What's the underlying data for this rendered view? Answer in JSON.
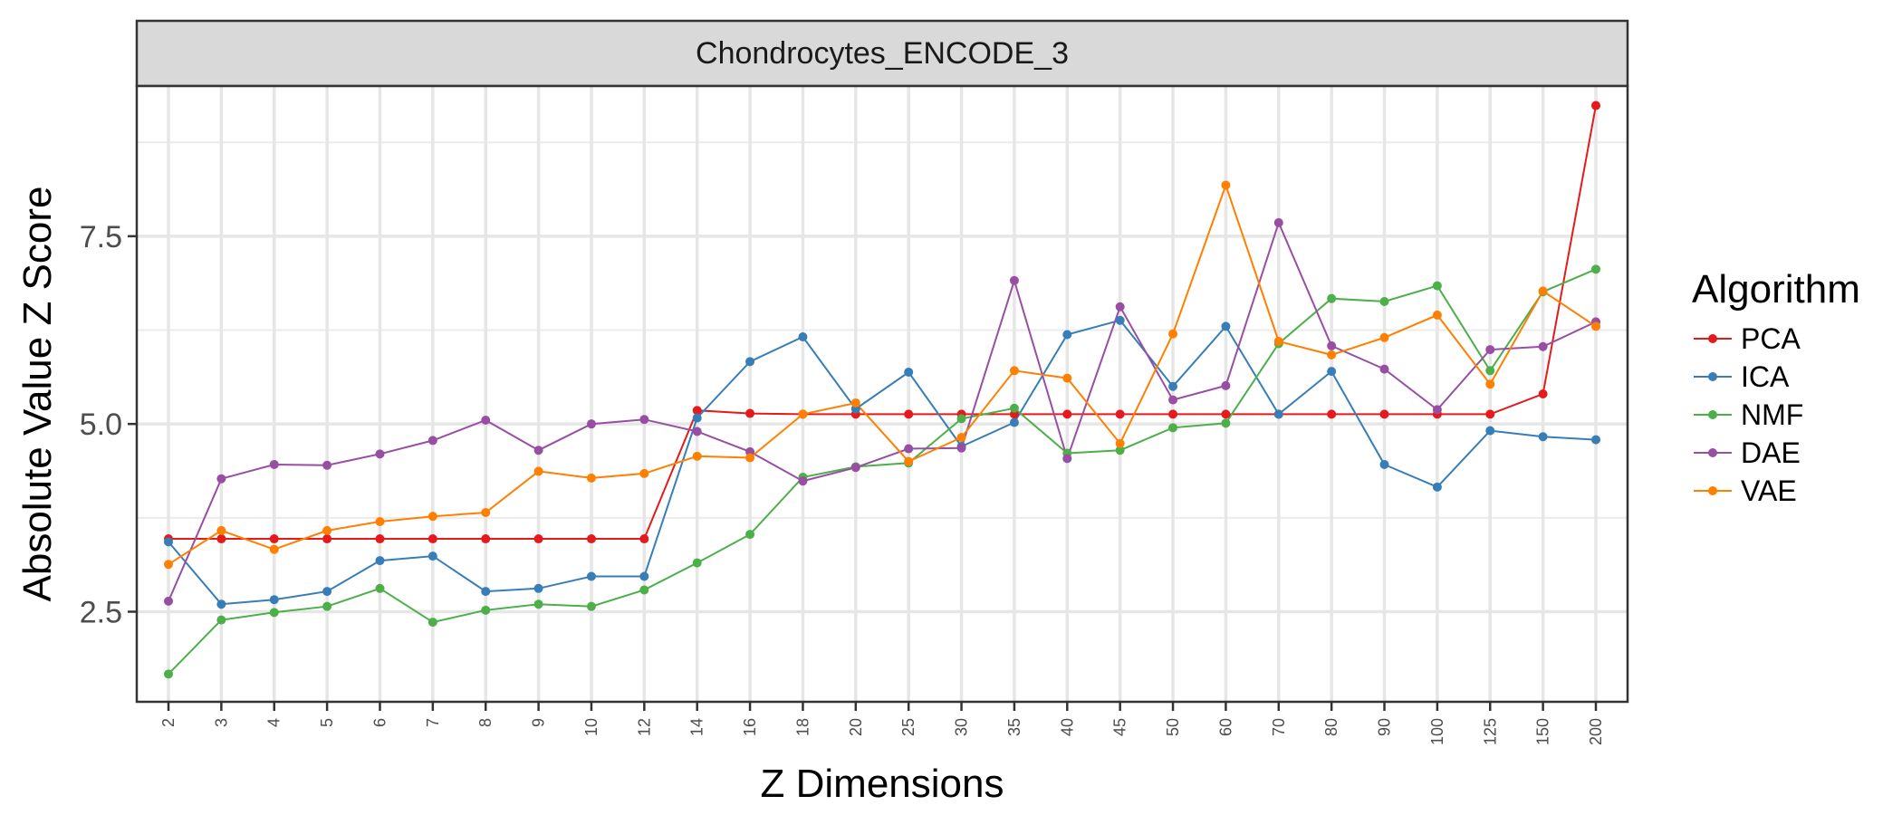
{
  "chart_data": {
    "type": "line",
    "title": "Chondrocytes_ENCODE_3",
    "xlabel": "Z Dimensions",
    "ylabel": "Absolute Value Z Score",
    "ylim": [
      1.3,
      9.5
    ],
    "yticks": [
      "2.5",
      "5.0",
      "7.5"
    ],
    "ytick_values": [
      2.5,
      5.0,
      7.5
    ],
    "grid": true,
    "legend_title": "Algorithm",
    "legend_position": "right",
    "categories": [
      "2",
      "3",
      "4",
      "5",
      "6",
      "7",
      "8",
      "9",
      "10",
      "12",
      "14",
      "16",
      "18",
      "20",
      "25",
      "30",
      "35",
      "40",
      "45",
      "50",
      "60",
      "70",
      "80",
      "90",
      "100",
      "125",
      "150",
      "200"
    ],
    "series": [
      {
        "name": "PCA",
        "color": "#E41A1C",
        "values": [
          3.47,
          3.47,
          3.47,
          3.47,
          3.47,
          3.47,
          3.47,
          3.47,
          3.47,
          3.47,
          5.18,
          5.14,
          5.13,
          5.13,
          5.13,
          5.13,
          5.13,
          5.13,
          5.13,
          5.13,
          5.13,
          5.13,
          5.13,
          5.13,
          5.13,
          5.13,
          5.4,
          9.24
        ]
      },
      {
        "name": "ICA",
        "color": "#377EB8",
        "values": [
          3.43,
          2.6,
          2.66,
          2.77,
          3.18,
          3.24,
          2.77,
          2.81,
          2.97,
          2.97,
          5.08,
          5.83,
          6.16,
          5.2,
          5.69,
          4.7,
          5.02,
          6.19,
          6.38,
          5.5,
          6.3,
          5.13,
          5.7,
          4.46,
          4.16,
          4.91,
          4.83,
          4.79
        ]
      },
      {
        "name": "NMF",
        "color": "#4DAF4A",
        "values": [
          1.67,
          2.39,
          2.49,
          2.57,
          2.81,
          2.36,
          2.52,
          2.6,
          2.57,
          2.79,
          3.15,
          3.53,
          4.29,
          4.43,
          4.48,
          5.07,
          5.21,
          4.61,
          4.65,
          4.95,
          5.01,
          6.07,
          6.67,
          6.63,
          6.84,
          5.71,
          6.76,
          7.06
        ]
      },
      {
        "name": "DAE",
        "color": "#984EA3",
        "values": [
          2.64,
          4.27,
          4.46,
          4.45,
          4.6,
          4.78,
          5.05,
          4.65,
          5.0,
          5.06,
          4.9,
          4.63,
          4.24,
          4.42,
          4.67,
          4.68,
          6.91,
          4.54,
          6.56,
          5.32,
          5.51,
          7.68,
          6.04,
          5.73,
          5.19,
          5.99,
          6.03,
          6.36
        ]
      },
      {
        "name": "VAE",
        "color": "#FF7F00",
        "values": [
          3.13,
          3.58,
          3.33,
          3.58,
          3.7,
          3.77,
          3.82,
          4.37,
          4.28,
          4.34,
          4.57,
          4.55,
          5.13,
          5.28,
          4.5,
          4.82,
          5.71,
          5.61,
          4.74,
          6.2,
          8.18,
          6.1,
          5.92,
          6.15,
          6.45,
          5.53,
          6.77,
          6.3
        ]
      }
    ]
  }
}
